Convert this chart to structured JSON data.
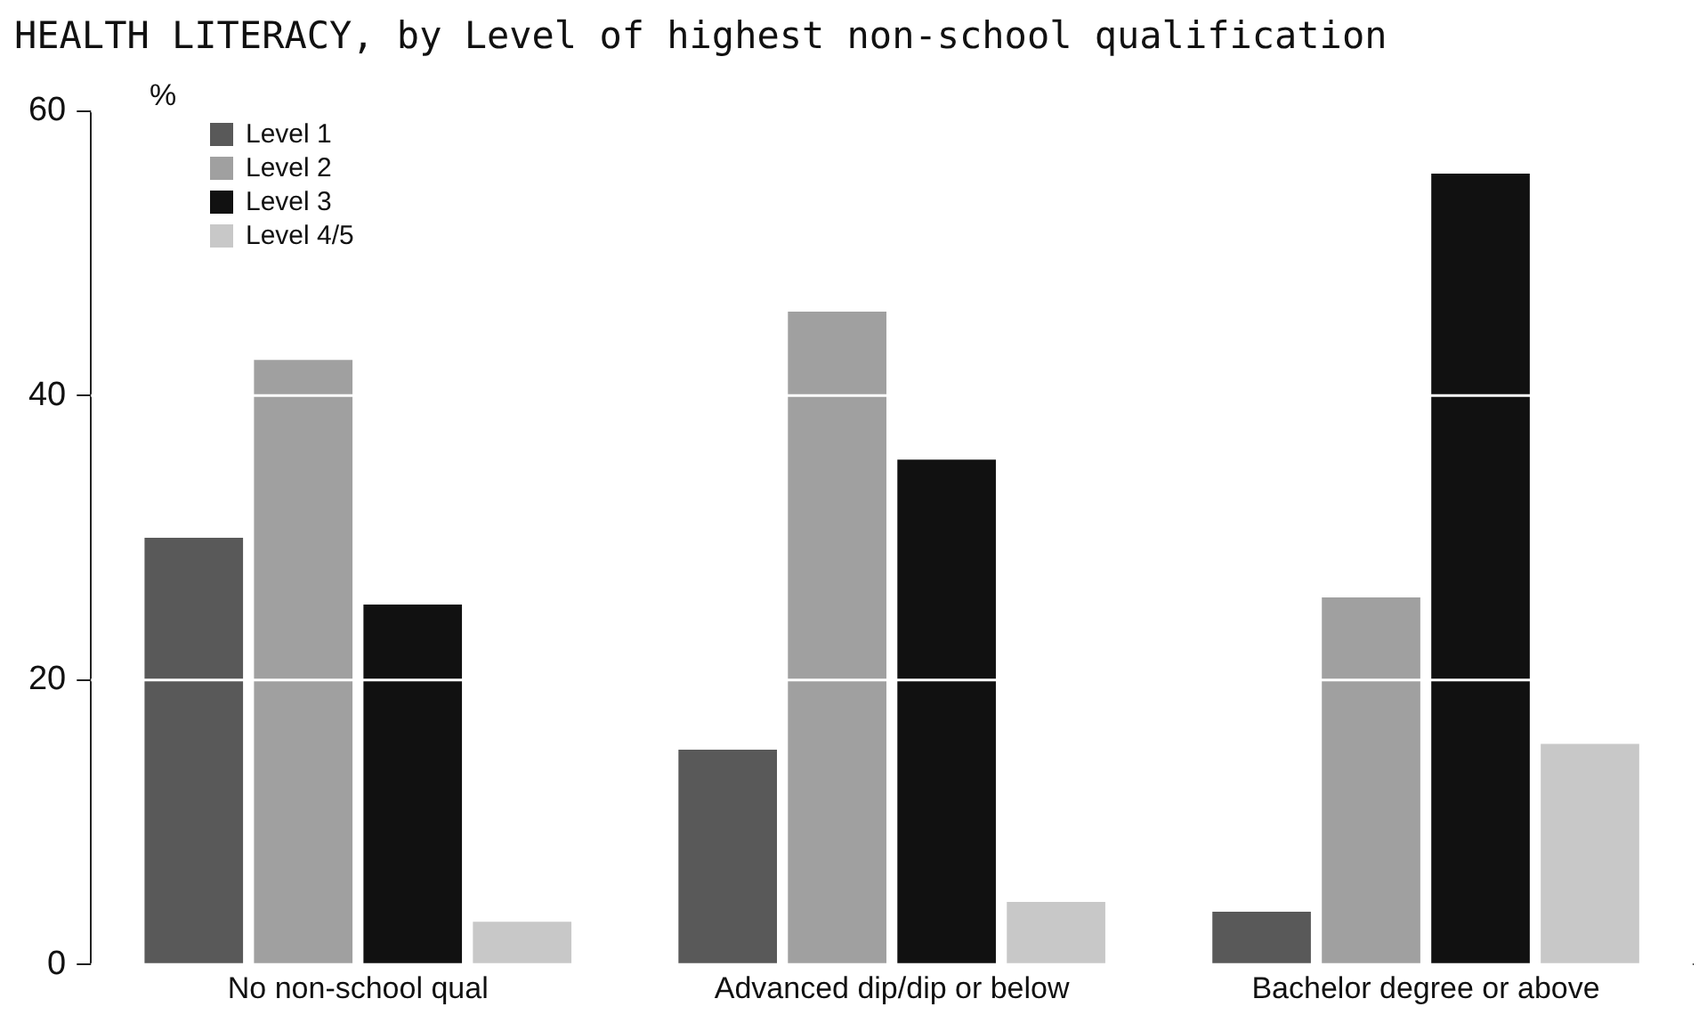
{
  "chart_data": {
    "type": "bar",
    "title": "HEALTH LITERACY, by Level of highest non-school qualification",
    "ylabel": "%",
    "categories": [
      "No non-school qual",
      "Advanced dip/dip or below",
      "Bachelor degree or above"
    ],
    "series": [
      {
        "name": "Level 1",
        "color": "#595959",
        "values": [
          30.0,
          15.1,
          3.7
        ]
      },
      {
        "name": "Level 2",
        "color": "#a0a0a0",
        "values": [
          42.5,
          45.9,
          25.8
        ]
      },
      {
        "name": "Level 3",
        "color": "#111111",
        "values": [
          25.3,
          35.5,
          55.6
        ]
      },
      {
        "name": "Level 4/5",
        "color": "#c8c8c8",
        "values": [
          3.0,
          4.4,
          15.5
        ]
      }
    ],
    "ylim": [
      0,
      60
    ],
    "yticks": [
      0,
      20,
      40,
      60
    ],
    "grid": "y",
    "legend": "top left"
  }
}
